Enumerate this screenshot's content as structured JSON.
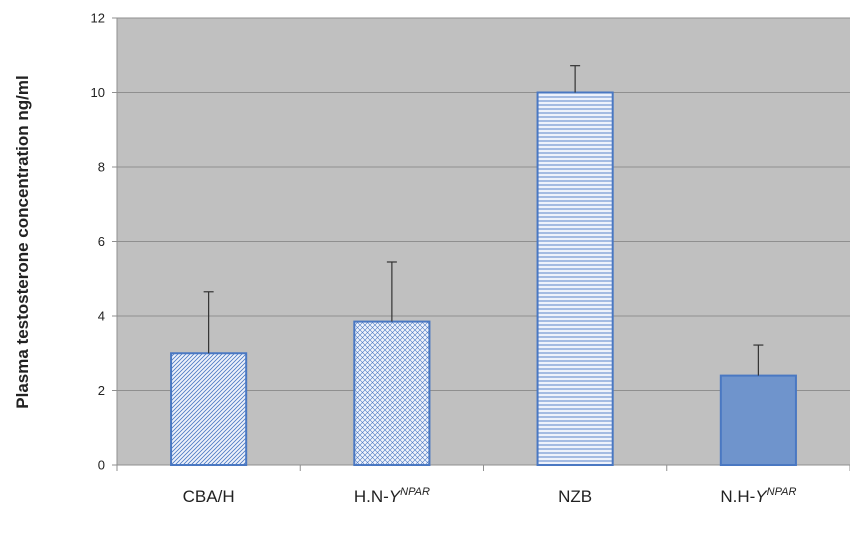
{
  "chart_data": {
    "type": "bar",
    "ylabel": "Plasma  testosterone concentration ng/ml",
    "ylim": [
      0,
      12
    ],
    "yticks": [
      0,
      2,
      4,
      6,
      8,
      10,
      12
    ],
    "grid": true,
    "legend": "none",
    "categories": [
      {
        "base": "CBA/H",
        "sup": ""
      },
      {
        "base": "H.N-Y",
        "sup": "NPAR"
      },
      {
        "base": "NZB",
        "sup": ""
      },
      {
        "base": "N.H-Y",
        "sup": "NPAR"
      }
    ],
    "values": [
      3.0,
      3.85,
      10.0,
      2.4
    ],
    "errors": [
      1.65,
      1.6,
      0.72,
      0.82
    ],
    "bar_patterns": [
      "diagonal-hatch",
      "cross-hatch",
      "horizontal-lines",
      "solid"
    ]
  },
  "colors": {
    "plot_background": "#c0c0c0",
    "gridline": "#8f8f8f",
    "bar_outline": "#4a78c2",
    "bar_fill_light": "#eef2fb",
    "bar_fill_solid": "#6f94cc",
    "error_bar": "#333333"
  }
}
